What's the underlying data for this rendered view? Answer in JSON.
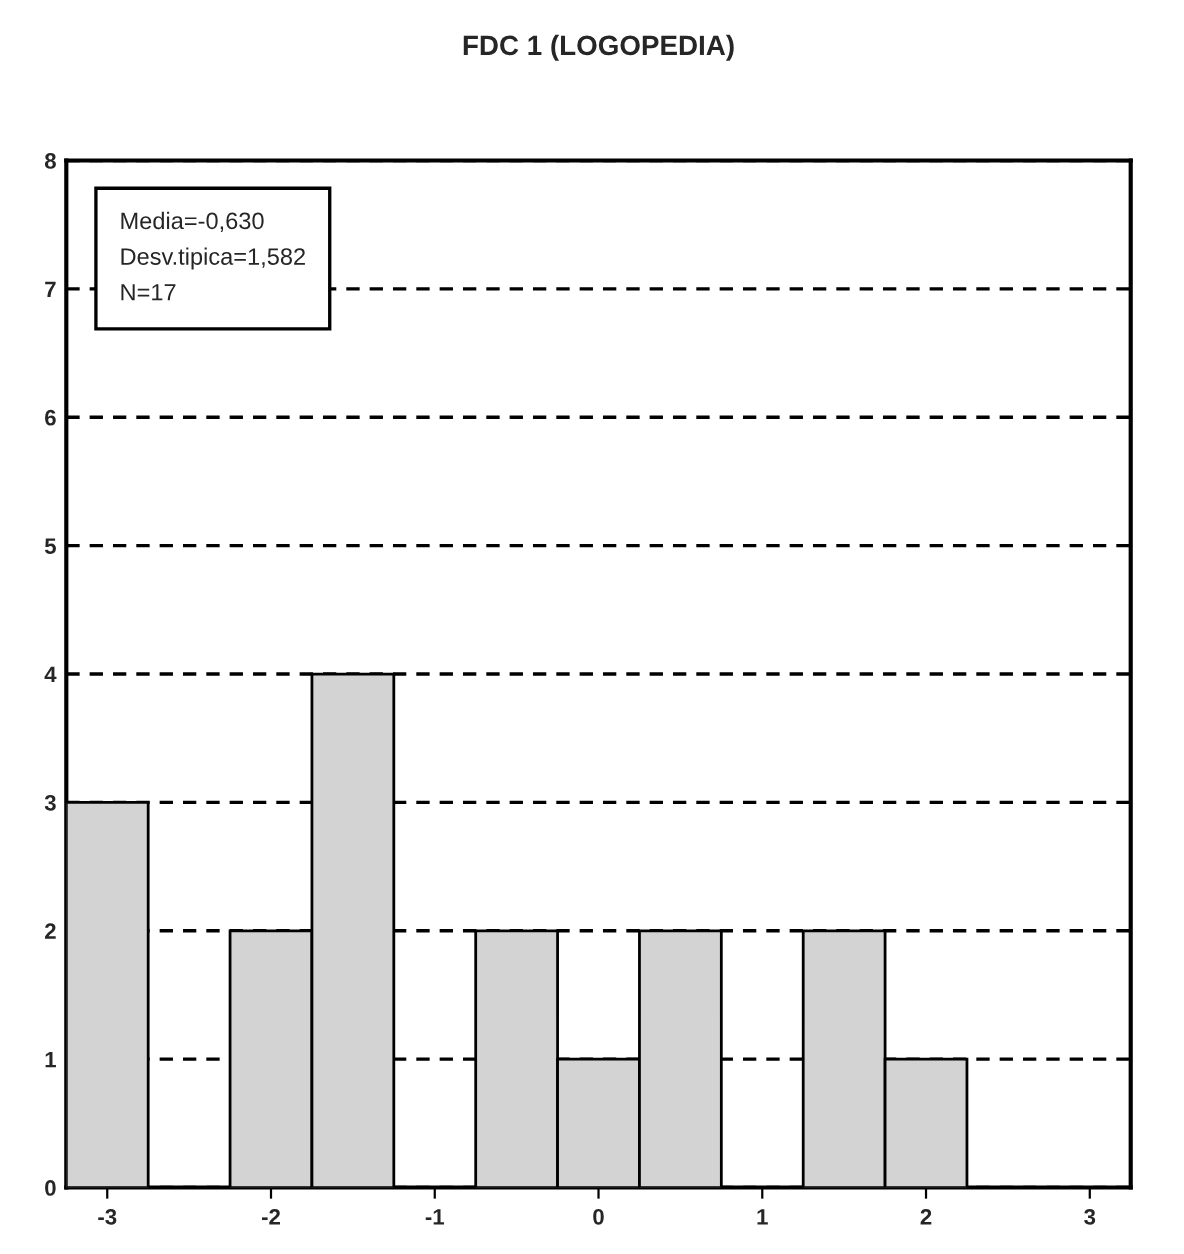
{
  "chart_data": {
    "type": "histogram",
    "title": "FDC 1 (LOGOPEDIA)",
    "bins": [
      -3.25,
      -2.75,
      -2.25,
      -1.75,
      -1.25,
      -0.75,
      -0.25,
      0.25,
      0.75,
      1.25,
      1.75,
      2.25,
      2.75,
      3.25
    ],
    "values": [
      3,
      0,
      2,
      4,
      0,
      2,
      1,
      2,
      0,
      2,
      1,
      0,
      0
    ],
    "color": "#d3d3d3",
    "xlim": [
      -3.25,
      3.25
    ],
    "xticks": [
      -3,
      -2,
      -1,
      0,
      1,
      2,
      3
    ],
    "ylim": [
      0,
      8
    ],
    "yticks": [
      0,
      1,
      2,
      3,
      4,
      5,
      6,
      7,
      8
    ],
    "grid": "y",
    "line_style": "dashed",
    "annotations": [
      "Media=-0,630\nDesv.tipica=1,582\nN=17"
    ]
  }
}
